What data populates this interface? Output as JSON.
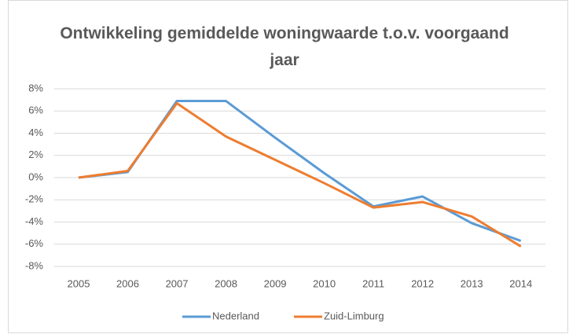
{
  "chart_data": {
    "type": "line",
    "title": "Ontwikkeling gemiddelde woningwaarde t.o.v. voorgaand jaar",
    "categories": [
      "2005",
      "2006",
      "2007",
      "2008",
      "2009",
      "2010",
      "2011",
      "2012",
      "2013",
      "2014"
    ],
    "series": [
      {
        "name": "Nederland",
        "color": "#5b9bd5",
        "values": [
          0,
          0.5,
          6.9,
          6.9,
          3.6,
          0.4,
          -2.6,
          -1.7,
          -4.1,
          -5.7
        ]
      },
      {
        "name": "Zuid-Limburg",
        "color": "#ed7d31",
        "values": [
          0,
          0.6,
          6.7,
          3.7,
          1.6,
          -0.5,
          -2.7,
          -2.2,
          -3.5,
          -6.2
        ]
      }
    ],
    "ylim": [
      -8,
      8
    ],
    "yticks": [
      {
        "value": -8,
        "label": "-8%"
      },
      {
        "value": -6,
        "label": "-6%"
      },
      {
        "value": -4,
        "label": "-4%"
      },
      {
        "value": -2,
        "label": "-2%"
      },
      {
        "value": 0,
        "label": "0%"
      },
      {
        "value": 2,
        "label": "2%"
      },
      {
        "value": 4,
        "label": "4%"
      },
      {
        "value": 6,
        "label": "6%"
      },
      {
        "value": 8,
        "label": "8%"
      }
    ],
    "grid": true,
    "legend": "bottom"
  }
}
